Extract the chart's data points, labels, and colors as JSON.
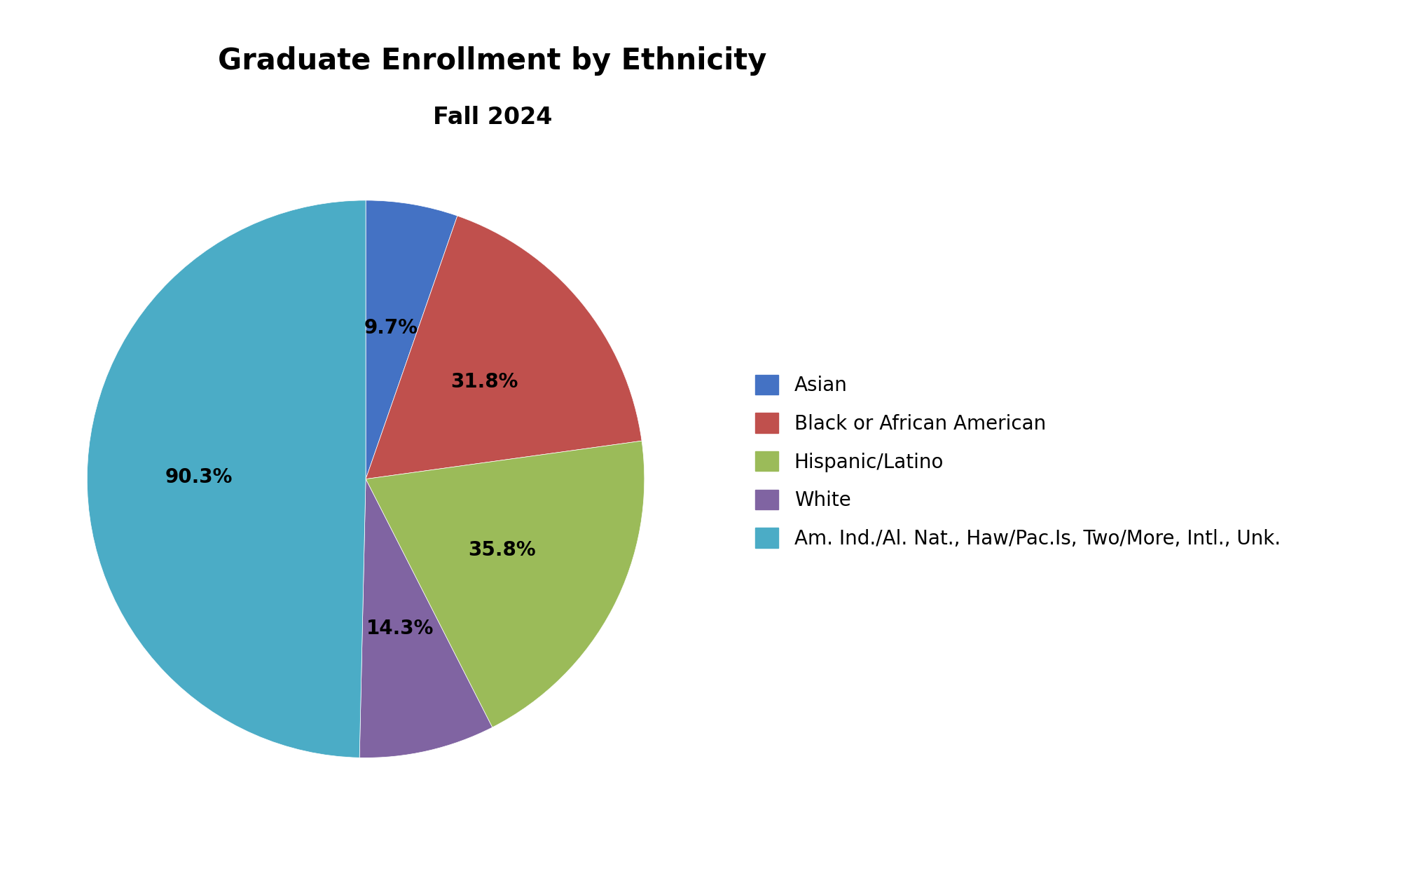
{
  "title": "Graduate Enrollment by Ethnicity",
  "subtitle": "Fall 2024",
  "labels": [
    "Asian",
    "Black or African American",
    "Hispanic/Latino",
    "White",
    "Am. Ind./Al. Nat., Haw/Pac.Is, Two/More, Intl., Unk."
  ],
  "values": [
    9.7,
    31.8,
    35.8,
    14.3,
    90.3
  ],
  "colors": [
    "#4472C4",
    "#C0504D",
    "#9BBB59",
    "#8064A2",
    "#4BACC6"
  ],
  "autopct_labels": [
    "9.7%",
    "31.8%",
    "35.8%",
    "14.3%",
    "90.3%"
  ],
  "background_color": "#FFFFFF",
  "title_fontsize": 30,
  "subtitle_fontsize": 24,
  "label_fontsize": 20,
  "legend_fontsize": 20,
  "startangle": 90
}
